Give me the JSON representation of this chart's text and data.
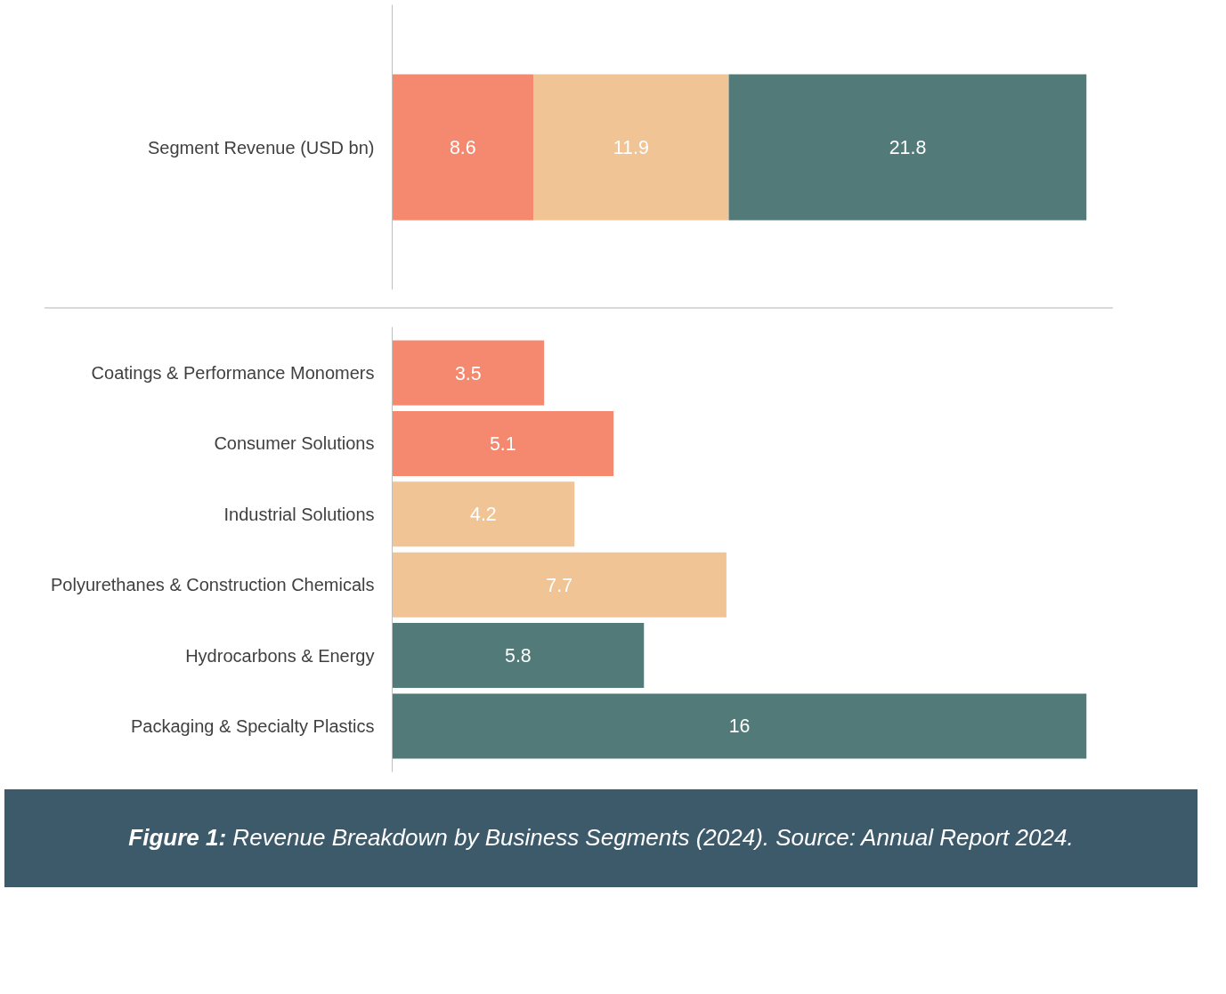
{
  "chart_data": [
    {
      "type": "bar",
      "orientation": "horizontal",
      "stacked": true,
      "data_labels": true,
      "grid": false,
      "tick_labels": "y",
      "categories": [
        "Segment Revenue (USD bn)"
      ],
      "series": [
        {
          "color": "#f4896f",
          "values": [
            8.6
          ]
        },
        {
          "color": "#f0c495",
          "values": [
            11.9
          ]
        },
        {
          "color": "#527a78",
          "values": [
            21.8
          ]
        }
      ]
    },
    {
      "type": "bar",
      "orientation": "horizontal",
      "data_labels": true,
      "grid": false,
      "tick_labels": "y",
      "categories": [
        "Coatings & Performance Monomers",
        "Consumer Solutions",
        "Industrial Solutions",
        "Polyurethanes & Construction Chemicals",
        "Hydrocarbons & Energy",
        "Packaging & Specialty Plastics"
      ],
      "values": [
        3.5,
        5.1,
        4.2,
        7.7,
        5.8,
        16
      ],
      "colors": [
        "#f4896f",
        "#f4896f",
        "#f0c495",
        "#f0c495",
        "#527a78",
        "#527a78"
      ],
      "annotations": [
        "Figure 1: Revenue Breakdown by Business Segments (2024). Source: Annual Report 2024."
      ]
    }
  ]
}
